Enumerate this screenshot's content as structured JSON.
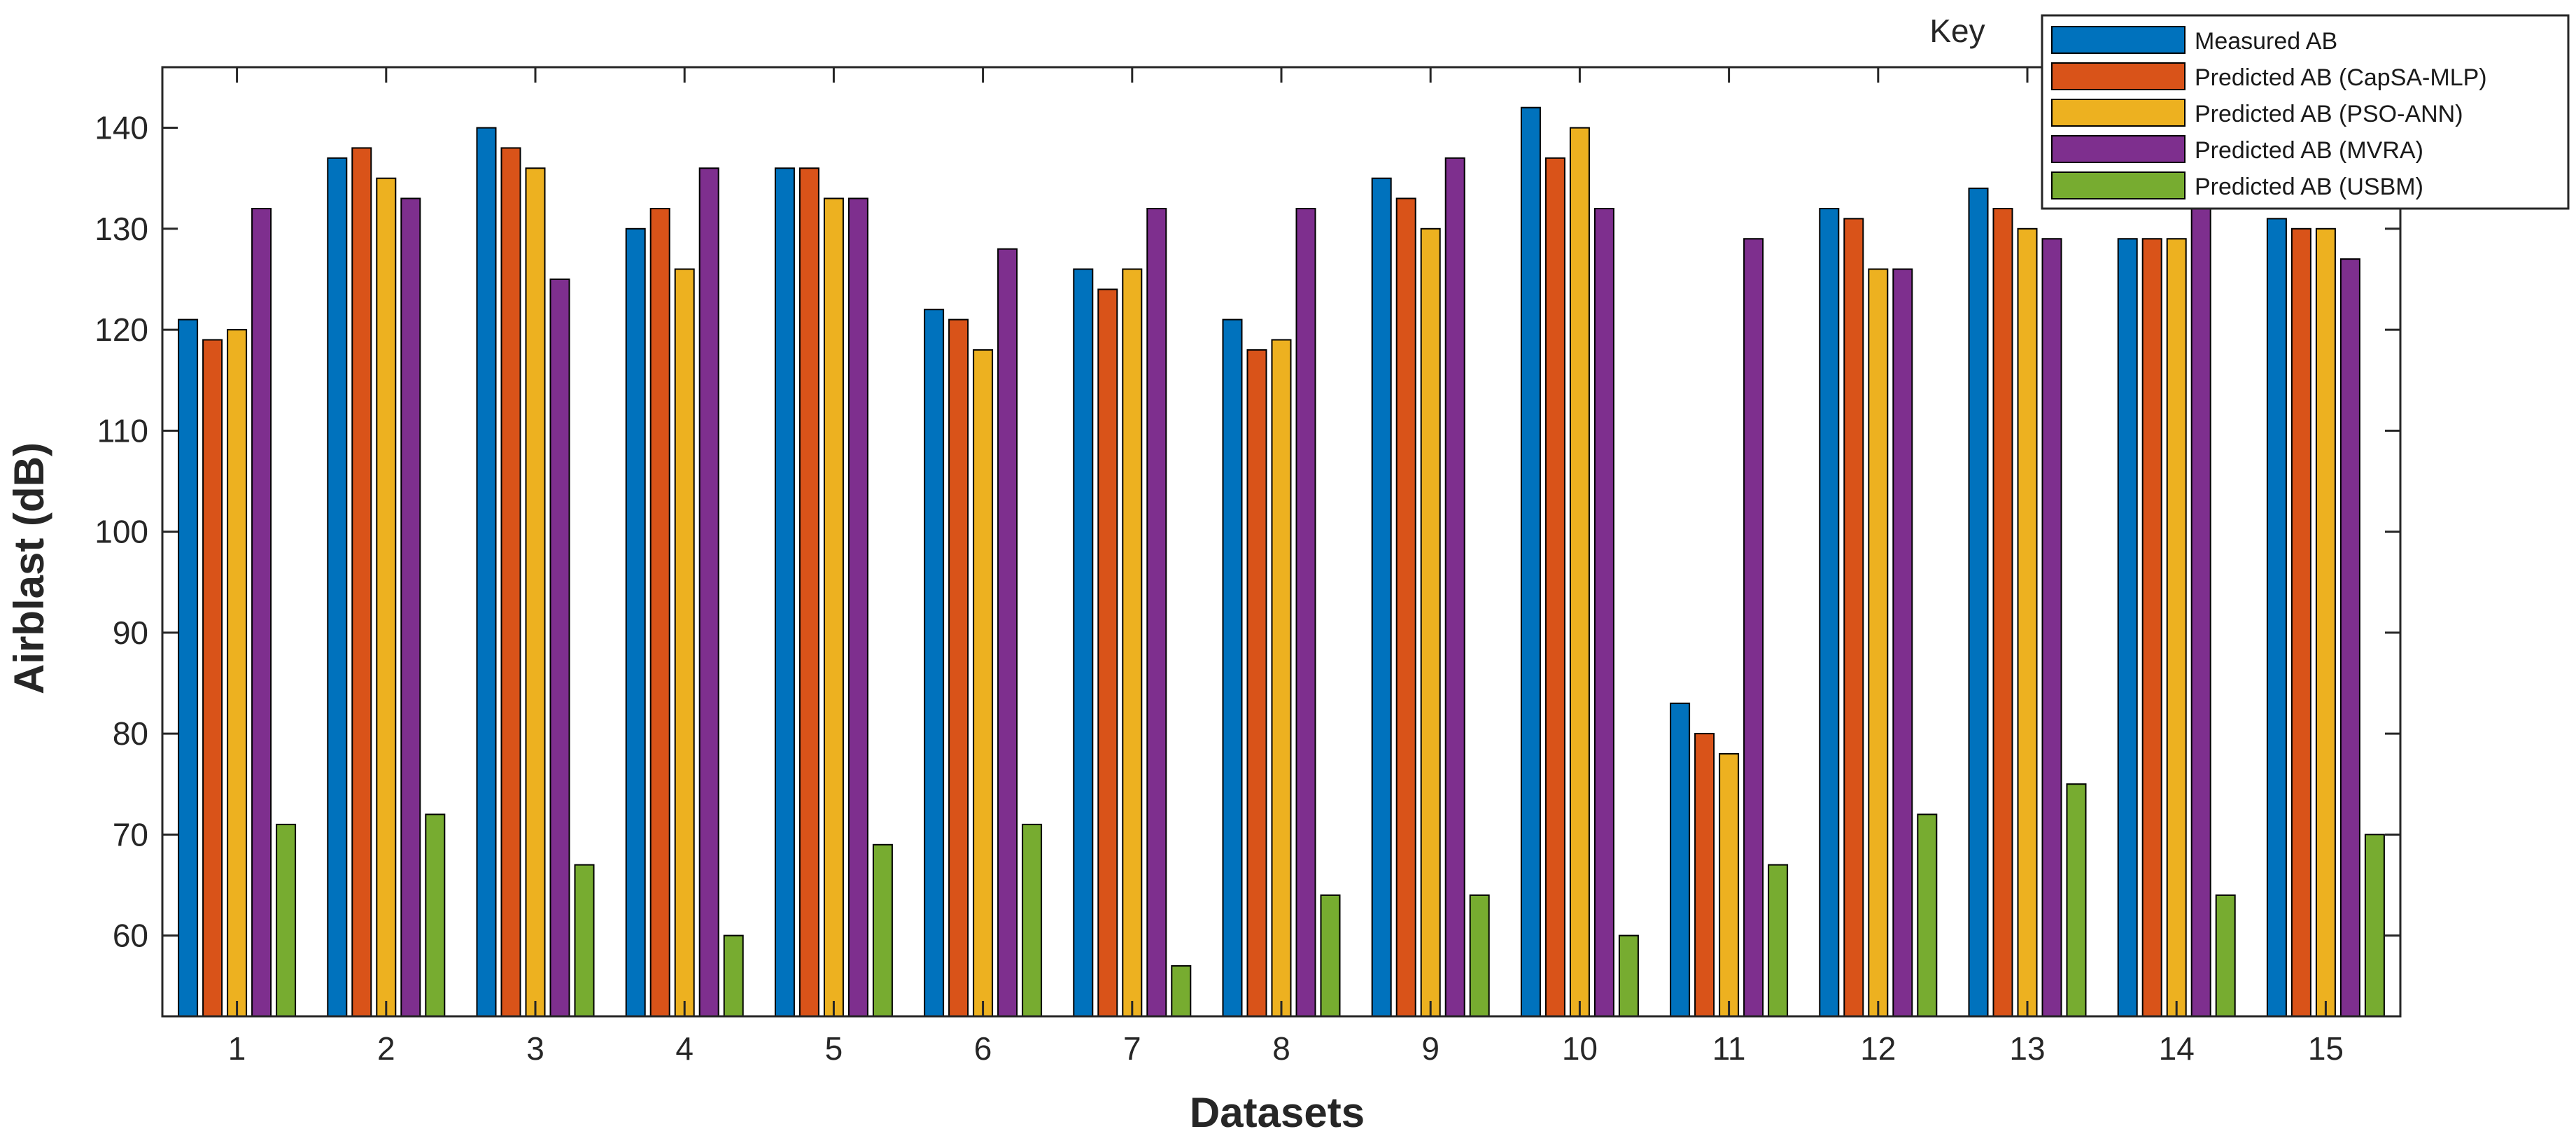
{
  "chart_data": {
    "type": "bar",
    "title": "",
    "xlabel": "Datasets",
    "ylabel": "Airblast (dB)",
    "ylim": [
      52,
      146
    ],
    "yticks": [
      60,
      70,
      80,
      90,
      100,
      110,
      120,
      130,
      140
    ],
    "categories": [
      "1",
      "2",
      "3",
      "4",
      "5",
      "6",
      "7",
      "8",
      "9",
      "10",
      "11",
      "12",
      "13",
      "14",
      "15"
    ],
    "grid": false,
    "legend_title": "Key",
    "legend_position": "top-right",
    "series": [
      {
        "name": "Measured AB",
        "color": "#0072BD",
        "values": [
          121,
          137,
          140,
          130,
          136,
          122,
          126,
          121,
          135,
          142,
          83,
          132,
          134,
          129,
          131
        ]
      },
      {
        "name": "Predicted AB (CapSA-MLP)",
        "color": "#D95319",
        "values": [
          119,
          138,
          138,
          132,
          136,
          121,
          124,
          118,
          133,
          137,
          80,
          131,
          132,
          129,
          130
        ]
      },
      {
        "name": "Predicted AB (PSO-ANN)",
        "color": "#EDB120",
        "values": [
          120,
          135,
          136,
          126,
          133,
          118,
          126,
          119,
          130,
          140,
          78,
          126,
          130,
          129,
          130
        ]
      },
      {
        "name": "Predicted AB (MVRA)",
        "color": "#7E2F8E",
        "values": [
          132,
          133,
          125,
          136,
          133,
          128,
          132,
          132,
          137,
          132,
          129,
          126,
          129,
          132,
          127
        ]
      },
      {
        "name": "Predicted AB (USBM)",
        "color": "#77AC30",
        "values": [
          71,
          72,
          67,
          60,
          69,
          71,
          57,
          64,
          64,
          60,
          67,
          72,
          75,
          64,
          70
        ]
      }
    ]
  }
}
